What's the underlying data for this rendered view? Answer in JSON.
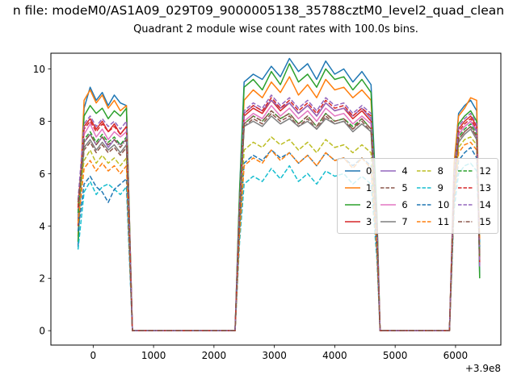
{
  "figure": {
    "suptitle": "n file: modeM0/AS1A09_029T09_9000005138_35788cztM0_level2_quad_clean",
    "title": "Quadrant 2 module wise count rates with 100.0s bins."
  },
  "chart_data": {
    "type": "line",
    "title": "Quadrant 2 module wise count rates with 100.0s bins.",
    "suptitle": "n file: modeM0/AS1A09_029T09_9000005138_35788cztM0_level2_quad_clean",
    "xlabel": "",
    "ylabel": "",
    "x_axis_offset_label": "+3.9e8",
    "xlim": [
      -700,
      6750
    ],
    "ylim": [
      -0.55,
      10.6
    ],
    "xticks": [
      0,
      1000,
      2000,
      3000,
      4000,
      5000,
      6000
    ],
    "yticks": [
      0,
      2,
      4,
      6,
      8,
      10
    ],
    "grid": false,
    "legend": {
      "ncol": 4,
      "location": "center right",
      "labels": [
        "0",
        "1",
        "2",
        "3",
        "4",
        "5",
        "6",
        "7",
        "8",
        "9",
        "10",
        "11",
        "12",
        "13",
        "14",
        "15"
      ]
    },
    "x": [
      -250,
      -150,
      -50,
      50,
      150,
      250,
      350,
      450,
      550,
      650,
      1000,
      1500,
      2000,
      2350,
      2425,
      2500,
      2650,
      2800,
      2950,
      3100,
      3250,
      3400,
      3550,
      3700,
      3850,
      4000,
      4150,
      4300,
      4450,
      4600,
      4700,
      4750,
      5000,
      5400,
      5800,
      5900,
      5975,
      6050,
      6150,
      6250,
      6350,
      6400
    ],
    "series": [
      {
        "name": "0",
        "color": "#1f77b4",
        "linestyle": "solid",
        "values": [
          3.2,
          8.5,
          9.3,
          8.8,
          9.1,
          8.6,
          9.0,
          8.7,
          8.6,
          0,
          0,
          0,
          0,
          0,
          5.4,
          9.5,
          9.8,
          9.6,
          10.1,
          9.7,
          10.4,
          9.9,
          10.2,
          9.6,
          10.3,
          9.8,
          10.0,
          9.5,
          9.9,
          9.4,
          4.4,
          0,
          0,
          0,
          0,
          0,
          6.2,
          8.3,
          8.6,
          8.8,
          8.4,
          2.1
        ]
      },
      {
        "name": "1",
        "color": "#ff7f0e",
        "linestyle": "solid",
        "values": [
          3.6,
          8.8,
          9.2,
          8.7,
          9.0,
          8.5,
          8.8,
          8.4,
          8.6,
          0,
          0,
          0,
          0,
          0,
          5.2,
          8.8,
          9.2,
          8.9,
          9.5,
          9.1,
          9.7,
          9.0,
          9.4,
          8.9,
          9.6,
          9.2,
          9.3,
          8.9,
          9.2,
          8.8,
          4.2,
          0,
          0,
          0,
          0,
          0,
          6.4,
          8.2,
          8.5,
          8.9,
          8.8,
          3.0
        ]
      },
      {
        "name": "2",
        "color": "#2ca02c",
        "linestyle": "solid",
        "values": [
          3.4,
          8.2,
          8.6,
          8.3,
          8.5,
          8.1,
          8.4,
          8.2,
          8.5,
          0,
          0,
          0,
          0,
          0,
          5.3,
          9.3,
          9.6,
          9.2,
          9.9,
          9.4,
          10.2,
          9.5,
          9.8,
          9.3,
          10.0,
          9.6,
          9.7,
          9.2,
          9.6,
          9.1,
          4.3,
          0,
          0,
          0,
          0,
          0,
          6.0,
          7.9,
          8.2,
          8.4,
          8.0,
          2.0
        ]
      },
      {
        "name": "3",
        "color": "#d62728",
        "linestyle": "solid",
        "values": [
          4.0,
          7.8,
          8.1,
          7.7,
          8.0,
          7.6,
          7.9,
          7.5,
          7.8,
          0,
          0,
          0,
          0,
          0,
          4.7,
          8.2,
          8.5,
          8.3,
          8.8,
          8.4,
          8.7,
          8.3,
          8.6,
          8.2,
          8.7,
          8.4,
          8.5,
          8.1,
          8.4,
          8.0,
          3.8,
          0,
          0,
          0,
          0,
          0,
          5.8,
          7.7,
          8.0,
          8.2,
          7.8,
          2.6
        ]
      },
      {
        "name": "4",
        "color": "#9467bd",
        "linestyle": "solid",
        "values": [
          4.4,
          7.2,
          7.5,
          7.1,
          7.4,
          7.0,
          7.3,
          7.1,
          7.3,
          0,
          0,
          0,
          0,
          0,
          4.6,
          8.3,
          8.6,
          8.4,
          8.8,
          8.5,
          8.7,
          8.3,
          8.6,
          8.2,
          8.7,
          8.4,
          8.5,
          8.2,
          8.5,
          8.1,
          3.7,
          0,
          0,
          0,
          0,
          0,
          5.6,
          7.5,
          7.8,
          8.0,
          7.6,
          2.8
        ]
      },
      {
        "name": "5",
        "color": "#8c564b",
        "linestyle": "dashed",
        "values": [
          4.2,
          6.9,
          7.2,
          6.8,
          7.1,
          6.8,
          7.0,
          6.7,
          7.0,
          0,
          0,
          0,
          0,
          0,
          4.4,
          7.8,
          8.1,
          7.9,
          8.3,
          8.0,
          8.2,
          7.8,
          8.1,
          7.7,
          8.2,
          7.9,
          8.0,
          7.7,
          8.0,
          7.6,
          3.6,
          0,
          0,
          0,
          0,
          0,
          5.5,
          7.3,
          7.6,
          7.8,
          7.4,
          2.9
        ]
      },
      {
        "name": "6",
        "color": "#e377c2",
        "linestyle": "solid",
        "values": [
          4.6,
          7.5,
          7.9,
          7.4,
          7.7,
          7.3,
          7.6,
          7.4,
          7.6,
          0,
          0,
          0,
          0,
          0,
          4.5,
          8.0,
          8.3,
          8.1,
          8.6,
          8.2,
          8.5,
          8.1,
          8.4,
          8.0,
          8.5,
          8.2,
          8.3,
          7.9,
          8.2,
          7.9,
          3.7,
          0,
          0,
          0,
          0,
          0,
          5.7,
          7.5,
          7.8,
          8.0,
          7.7,
          3.1
        ]
      },
      {
        "name": "7",
        "color": "#7f7f7f",
        "linestyle": "solid",
        "values": [
          4.3,
          7.0,
          7.3,
          6.9,
          7.2,
          6.9,
          7.1,
          6.8,
          7.1,
          0,
          0,
          0,
          0,
          0,
          4.3,
          7.8,
          8.0,
          7.8,
          8.2,
          7.9,
          8.1,
          7.8,
          8.0,
          7.7,
          8.1,
          7.9,
          8.0,
          7.6,
          7.9,
          7.6,
          3.5,
          0,
          0,
          0,
          0,
          0,
          5.4,
          7.2,
          7.5,
          7.7,
          7.3,
          3.0
        ]
      },
      {
        "name": "8",
        "color": "#bcbd22",
        "linestyle": "dashed",
        "values": [
          4.8,
          6.5,
          6.9,
          6.4,
          6.7,
          6.4,
          6.6,
          6.3,
          6.6,
          0,
          0,
          0,
          0,
          0,
          4.0,
          6.9,
          7.2,
          7.0,
          7.4,
          7.1,
          7.3,
          6.9,
          7.2,
          6.8,
          7.3,
          7.0,
          7.1,
          6.8,
          7.1,
          6.8,
          3.2,
          0,
          0,
          0,
          0,
          0,
          5.2,
          7.0,
          7.3,
          7.4,
          7.1,
          3.3
        ]
      },
      {
        "name": "9",
        "color": "#17becf",
        "linestyle": "dashed",
        "values": [
          3.1,
          5.3,
          5.7,
          5.2,
          5.5,
          5.6,
          5.4,
          5.2,
          5.5,
          0,
          0,
          0,
          0,
          0,
          3.4,
          5.6,
          5.9,
          5.7,
          6.2,
          5.8,
          6.3,
          5.7,
          6.0,
          5.6,
          6.1,
          5.9,
          6.0,
          5.6,
          5.9,
          5.6,
          2.7,
          0,
          0,
          0,
          0,
          0,
          4.6,
          6.0,
          6.3,
          6.4,
          6.1,
          3.4
        ]
      },
      {
        "name": "10",
        "color": "#1f77b4",
        "linestyle": "dashed",
        "values": [
          3.8,
          5.6,
          5.9,
          5.5,
          5.3,
          4.9,
          5.4,
          5.6,
          5.8,
          0,
          0,
          0,
          0,
          0,
          3.8,
          6.4,
          6.7,
          6.5,
          6.9,
          6.6,
          6.8,
          6.4,
          6.7,
          6.3,
          6.8,
          6.5,
          6.6,
          6.3,
          6.6,
          6.3,
          2.9,
          0,
          0,
          0,
          0,
          0,
          4.9,
          6.5,
          6.8,
          7.0,
          6.6,
          3.2
        ]
      },
      {
        "name": "11",
        "color": "#ff7f0e",
        "linestyle": "dashed",
        "values": [
          4.1,
          6.2,
          6.5,
          6.1,
          6.4,
          6.1,
          6.3,
          6.0,
          6.3,
          0,
          0,
          0,
          0,
          0,
          3.7,
          6.3,
          6.6,
          6.4,
          6.9,
          6.5,
          6.8,
          6.4,
          6.7,
          6.3,
          6.8,
          6.5,
          6.6,
          6.2,
          6.6,
          6.2,
          3.0,
          0,
          0,
          0,
          0,
          0,
          5.0,
          6.8,
          7.1,
          7.2,
          6.9,
          3.5
        ]
      },
      {
        "name": "12",
        "color": "#2ca02c",
        "linestyle": "dashed",
        "values": [
          4.5,
          7.3,
          7.6,
          7.2,
          7.5,
          7.2,
          7.4,
          7.1,
          7.4,
          0,
          0,
          0,
          0,
          0,
          4.4,
          7.9,
          8.2,
          8.0,
          8.4,
          8.1,
          8.3,
          7.9,
          8.2,
          7.8,
          8.3,
          8.0,
          8.1,
          7.8,
          8.1,
          7.7,
          3.6,
          0,
          0,
          0,
          0,
          0,
          5.6,
          7.4,
          7.7,
          7.9,
          7.5,
          2.7
        ]
      },
      {
        "name": "13",
        "color": "#d62728",
        "linestyle": "dashed",
        "values": [
          4.7,
          7.7,
          8.0,
          7.6,
          7.9,
          7.6,
          7.8,
          7.5,
          7.8,
          0,
          0,
          0,
          0,
          0,
          4.6,
          8.3,
          8.6,
          8.4,
          8.9,
          8.5,
          8.8,
          8.4,
          8.7,
          8.3,
          8.8,
          8.5,
          8.6,
          8.2,
          8.5,
          8.2,
          3.8,
          0,
          0,
          0,
          0,
          0,
          5.8,
          7.6,
          7.9,
          8.1,
          7.7,
          2.5
        ]
      },
      {
        "name": "14",
        "color": "#9467bd",
        "linestyle": "dashed",
        "values": [
          5.0,
          7.9,
          8.2,
          7.8,
          8.1,
          7.8,
          8.0,
          7.7,
          8.0,
          0,
          0,
          0,
          0,
          0,
          4.7,
          8.4,
          8.7,
          8.5,
          9.0,
          8.6,
          8.9,
          8.5,
          8.8,
          8.4,
          8.9,
          8.6,
          8.7,
          8.3,
          8.6,
          8.3,
          3.9,
          0,
          0,
          0,
          0,
          0,
          5.9,
          7.8,
          8.1,
          8.3,
          7.9,
          2.4
        ]
      },
      {
        "name": "15",
        "color": "#8c564b",
        "linestyle": "dashdot",
        "values": [
          4.9,
          7.2,
          7.5,
          7.1,
          7.4,
          7.1,
          7.3,
          7.0,
          7.3,
          0,
          0,
          0,
          0,
          0,
          4.4,
          7.9,
          8.2,
          8.0,
          8.4,
          8.1,
          8.3,
          7.9,
          8.2,
          7.8,
          8.3,
          8.0,
          8.1,
          7.7,
          8.1,
          7.7,
          3.6,
          0,
          0,
          0,
          0,
          0,
          5.5,
          7.3,
          7.6,
          7.8,
          7.4,
          2.8
        ]
      }
    ]
  }
}
